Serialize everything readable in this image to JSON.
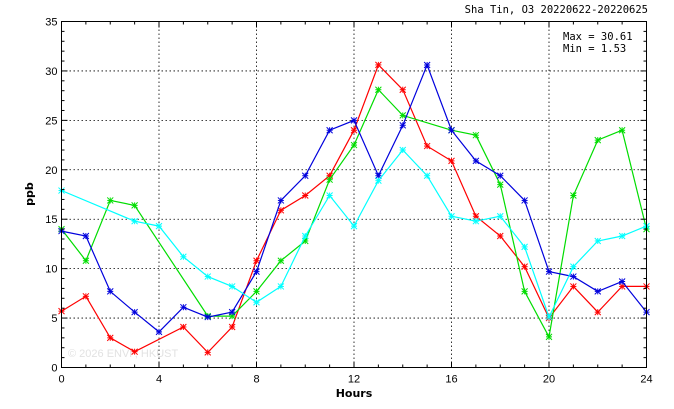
{
  "chart_data": {
    "type": "line",
    "title": "Sha Tin, O3 20220622-20220625",
    "xlabel": "Hours",
    "ylabel": "ppb",
    "xlim": [
      0,
      24
    ],
    "ylim": [
      0,
      35
    ],
    "xticks": [
      0,
      4,
      8,
      12,
      16,
      20,
      24
    ],
    "yticks": [
      0,
      5,
      10,
      15,
      20,
      25,
      30,
      35
    ],
    "grid": true,
    "stats": {
      "max_label": "Max = 30.61",
      "min_label": "Min =  1.53"
    },
    "watermark": "© 2026  ENVF, HKUST",
    "x": [
      0,
      1,
      2,
      3,
      4,
      5,
      6,
      7,
      8,
      9,
      10,
      11,
      12,
      13,
      14,
      15,
      16,
      17,
      18,
      19,
      20,
      21,
      22,
      23,
      24
    ],
    "series": [
      {
        "color": "#ff0000",
        "values": [
          5.7,
          7.2,
          3.0,
          1.6,
          null,
          4.1,
          1.53,
          4.1,
          10.8,
          15.9,
          17.4,
          19.4,
          24.0,
          30.61,
          28.1,
          22.4,
          20.9,
          15.3,
          13.3,
          10.2,
          5.0,
          8.2,
          5.6,
          8.2,
          8.2
        ]
      },
      {
        "color": "#00dd00",
        "values": [
          14.0,
          10.8,
          16.9,
          16.4,
          null,
          null,
          5.2,
          5.2,
          7.7,
          10.8,
          12.8,
          19.0,
          22.5,
          28.1,
          25.5,
          null,
          24.0,
          23.5,
          18.5,
          7.7,
          3.1,
          17.4,
          23.0,
          24.0,
          14.0
        ]
      },
      {
        "color": "#0000dd",
        "values": [
          13.8,
          13.3,
          7.7,
          5.6,
          3.6,
          6.1,
          5.1,
          5.6,
          9.7,
          16.9,
          19.4,
          24.0,
          25.0,
          19.4,
          24.5,
          30.6,
          24.0,
          20.9,
          19.4,
          16.9,
          9.7,
          9.2,
          7.7,
          8.7,
          5.6
        ]
      },
      {
        "color": "#00ffff",
        "values": [
          17.9,
          null,
          null,
          14.8,
          14.3,
          11.2,
          9.2,
          8.2,
          6.6,
          8.2,
          13.3,
          17.4,
          14.3,
          18.9,
          22.0,
          19.4,
          15.3,
          14.8,
          15.3,
          12.2,
          5.1,
          10.2,
          12.8,
          13.3,
          14.3
        ]
      }
    ]
  }
}
